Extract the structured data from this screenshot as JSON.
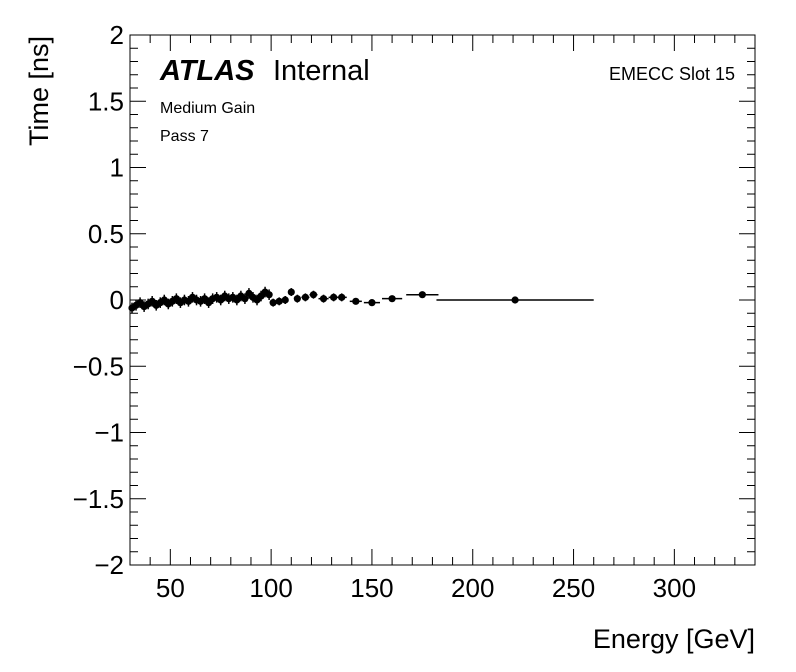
{
  "chart_data": {
    "type": "scatter",
    "title": "",
    "xlabel": "Energy [GeV]",
    "ylabel": "Time [ns]",
    "xlim": [
      30,
      340
    ],
    "ylim": [
      -2,
      2
    ],
    "x_ticks": [
      50,
      100,
      150,
      200,
      250,
      300
    ],
    "y_ticks": [
      -2,
      -1.5,
      -1,
      -0.5,
      0,
      0.5,
      1,
      1.5,
      2
    ],
    "y_tick_labels": [
      "−2",
      "−1.5",
      "−1",
      "−0.5",
      "0",
      "0.5",
      "1",
      "1.5",
      "2"
    ],
    "grid": false,
    "annotations": {
      "atlas": "ATLAS",
      "internal": "Internal",
      "gain": "Medium Gain",
      "pass": "Pass 7",
      "slot": "EMECC Slot 15"
    },
    "series": [
      {
        "points": [
          {
            "x": 31,
            "y": -0.06,
            "xerr": 1,
            "yerr": 0.04
          },
          {
            "x": 33,
            "y": -0.04,
            "xerr": 1,
            "yerr": 0.04
          },
          {
            "x": 35,
            "y": -0.02,
            "xerr": 1,
            "yerr": 0.04
          },
          {
            "x": 37,
            "y": -0.05,
            "xerr": 1,
            "yerr": 0.04
          },
          {
            "x": 39,
            "y": -0.03,
            "xerr": 1,
            "yerr": 0.04
          },
          {
            "x": 41,
            "y": -0.01,
            "xerr": 1,
            "yerr": 0.04
          },
          {
            "x": 43,
            "y": -0.04,
            "xerr": 1,
            "yerr": 0.04
          },
          {
            "x": 45,
            "y": -0.02,
            "xerr": 1,
            "yerr": 0.04
          },
          {
            "x": 47,
            "y": 0.0,
            "xerr": 1,
            "yerr": 0.04
          },
          {
            "x": 49,
            "y": -0.03,
            "xerr": 1,
            "yerr": 0.04
          },
          {
            "x": 51,
            "y": -0.01,
            "xerr": 1,
            "yerr": 0.04
          },
          {
            "x": 53,
            "y": 0.01,
            "xerr": 1,
            "yerr": 0.04
          },
          {
            "x": 55,
            "y": -0.02,
            "xerr": 1,
            "yerr": 0.04
          },
          {
            "x": 57,
            "y": 0.0,
            "xerr": 1,
            "yerr": 0.04
          },
          {
            "x": 59,
            "y": -0.01,
            "xerr": 1,
            "yerr": 0.04
          },
          {
            "x": 61,
            "y": 0.02,
            "xerr": 1,
            "yerr": 0.04
          },
          {
            "x": 63,
            "y": 0.0,
            "xerr": 1,
            "yerr": 0.04
          },
          {
            "x": 65,
            "y": -0.01,
            "xerr": 1,
            "yerr": 0.04
          },
          {
            "x": 67,
            "y": 0.01,
            "xerr": 1,
            "yerr": 0.04
          },
          {
            "x": 69,
            "y": -0.02,
            "xerr": 1,
            "yerr": 0.04
          },
          {
            "x": 71,
            "y": 0.01,
            "xerr": 1,
            "yerr": 0.04
          },
          {
            "x": 73,
            "y": 0.02,
            "xerr": 1,
            "yerr": 0.04
          },
          {
            "x": 75,
            "y": 0.0,
            "xerr": 1,
            "yerr": 0.04
          },
          {
            "x": 77,
            "y": 0.03,
            "xerr": 1,
            "yerr": 0.04
          },
          {
            "x": 79,
            "y": 0.01,
            "xerr": 1,
            "yerr": 0.04
          },
          {
            "x": 81,
            "y": 0.02,
            "xerr": 1,
            "yerr": 0.04
          },
          {
            "x": 83,
            "y": 0.0,
            "xerr": 1,
            "yerr": 0.04
          },
          {
            "x": 85,
            "y": 0.03,
            "xerr": 1,
            "yerr": 0.04
          },
          {
            "x": 87,
            "y": 0.01,
            "xerr": 1,
            "yerr": 0.04
          },
          {
            "x": 89,
            "y": 0.05,
            "xerr": 1,
            "yerr": 0.04
          },
          {
            "x": 91,
            "y": 0.02,
            "xerr": 1,
            "yerr": 0.04
          },
          {
            "x": 93,
            "y": 0.0,
            "xerr": 1,
            "yerr": 0.04
          },
          {
            "x": 95,
            "y": 0.03,
            "xerr": 1,
            "yerr": 0.04
          },
          {
            "x": 97,
            "y": 0.06,
            "xerr": 1,
            "yerr": 0.04
          },
          {
            "x": 99,
            "y": 0.04,
            "xerr": 1,
            "yerr": 0.04
          },
          {
            "x": 101,
            "y": -0.02,
            "xerr": 1.5,
            "yerr": 0.03
          },
          {
            "x": 104,
            "y": -0.01,
            "xerr": 1.5,
            "yerr": 0.03
          },
          {
            "x": 107,
            "y": 0.0,
            "xerr": 1.5,
            "yerr": 0.03
          },
          {
            "x": 110,
            "y": 0.06,
            "xerr": 1.5,
            "yerr": 0.03
          },
          {
            "x": 113,
            "y": 0.01,
            "xerr": 1.5,
            "yerr": 0.03
          },
          {
            "x": 117,
            "y": 0.02,
            "xerr": 2,
            "yerr": 0.03
          },
          {
            "x": 121,
            "y": 0.04,
            "xerr": 2,
            "yerr": 0.03
          },
          {
            "x": 126,
            "y": 0.01,
            "xerr": 2.5,
            "yerr": 0.03
          },
          {
            "x": 131,
            "y": 0.02,
            "xerr": 2.5,
            "yerr": 0.03
          },
          {
            "x": 135,
            "y": 0.02,
            "xerr": 2.5,
            "yerr": 0.03
          },
          {
            "x": 142,
            "y": -0.01,
            "xerr": 3,
            "yerr": 0.02
          },
          {
            "x": 150,
            "y": -0.02,
            "xerr": 4,
            "yerr": 0.02
          },
          {
            "x": 160,
            "y": 0.01,
            "xerr": 5,
            "yerr": 0.02
          },
          {
            "x": 175,
            "y": 0.04,
            "xerr": 8,
            "yerr": 0.02
          },
          {
            "x": 221,
            "y": 0.0,
            "xerr": 39,
            "yerr": 0.02
          }
        ]
      }
    ]
  }
}
